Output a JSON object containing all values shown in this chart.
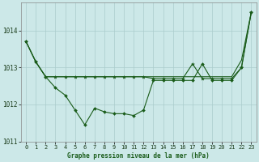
{
  "bg_color": "#cce8e8",
  "grid_color": "#aacccc",
  "line_color": "#1a5c1a",
  "ylim": [
    1011.0,
    1014.75
  ],
  "yticks": [
    1011,
    1012,
    1013,
    1014
  ],
  "xlim": [
    -0.5,
    23.5
  ],
  "xlabel": "Graphe pression niveau de la mer (hPa)",
  "hours": [
    0,
    1,
    2,
    3,
    4,
    5,
    6,
    7,
    8,
    9,
    10,
    11,
    12,
    13,
    14,
    15,
    16,
    17,
    18,
    19,
    20,
    21,
    22,
    23
  ],
  "y_zigzag": [
    1013.7,
    1013.15,
    1012.75,
    1012.45,
    1012.25,
    1011.85,
    1011.45,
    1011.9,
    1011.8,
    1011.75,
    1011.75,
    1011.7,
    1011.85,
    1012.65,
    1012.65,
    1012.65,
    1012.65,
    1012.65,
    1013.1,
    1012.65,
    1012.65,
    1012.65,
    1013.0,
    1014.5
  ],
  "y_flat": [
    1013.7,
    1013.15,
    1012.75,
    1012.75,
    1012.75,
    1012.75,
    1012.75,
    1012.75,
    1012.75,
    1012.75,
    1012.75,
    1012.75,
    1012.75,
    1012.75,
    1012.75,
    1012.75,
    1012.75,
    1012.75,
    1012.75,
    1012.75,
    1012.75,
    1012.75,
    1013.2,
    1014.5
  ],
  "y_star": [
    1013.7,
    1013.15,
    1012.75,
    1012.75,
    1012.75,
    1012.75,
    1012.75,
    1012.75,
    1012.75,
    1012.75,
    1012.75,
    1012.75,
    1012.75,
    1012.7,
    1012.7,
    1012.7,
    1012.7,
    1013.1,
    1012.7,
    1012.7,
    1012.7,
    1012.7,
    1013.0,
    1014.5
  ],
  "lw": 0.8,
  "ms_diamond": 2.0,
  "ms_star": 3.0,
  "xlabel_fontsize": 5.5,
  "tick_fontsize": 5.0
}
